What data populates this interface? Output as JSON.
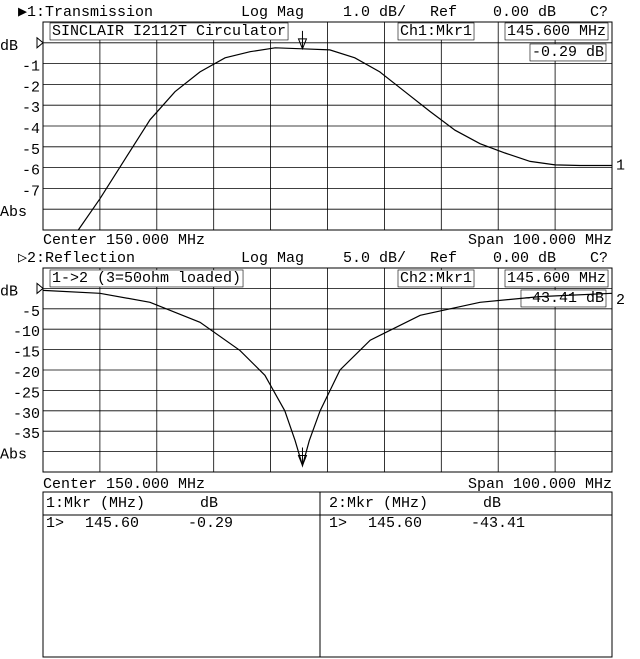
{
  "chart_data": [
    {
      "type": "line",
      "header": {
        "trace": "▶1:Transmission",
        "format": "Log Mag",
        "scale": "1.0 dB/",
        "ref_label": "Ref",
        "ref": "0.00 dB",
        "cal": "C?"
      },
      "annotation": "SINCLAIR I2112T Circulator",
      "marker_readout": {
        "channel": "Ch1:Mkr1",
        "frequency": "145.600 MHz",
        "value": "-0.29 dB"
      },
      "center": "Center 150.000 MHz",
      "span": "Span 100.000 MHz",
      "trace_label": "1",
      "color": "#000000",
      "x": [
        106.2,
        110,
        114.4,
        118.8,
        123.2,
        127.6,
        132,
        136.4,
        140.8,
        145.6,
        150.4,
        154.8,
        159.2,
        163.6,
        168,
        172.4,
        176.8,
        181.2,
        185.6,
        190,
        194.4,
        200
      ],
      "values": [
        -9,
        -7.5,
        -5.6,
        -3.7,
        -2.35,
        -1.4,
        -0.72,
        -0.43,
        -0.24,
        -0.29,
        -0.34,
        -0.72,
        -1.4,
        -2.35,
        -3.3,
        -4.2,
        -4.85,
        -5.3,
        -5.7,
        -5.87,
        -5.9,
        -5.9
      ],
      "marker": {
        "x": 145.6,
        "value": -0.29
      },
      "xlim": [
        100,
        200
      ],
      "ylim": [
        -9,
        1
      ],
      "xticks": [
        110,
        120,
        130,
        140,
        150,
        160,
        170,
        180,
        190
      ],
      "yticks": [
        {
          "value": 0,
          "label": "dB"
        },
        -1,
        -2,
        -3,
        -4,
        -5,
        -6,
        -7,
        {
          "value": -8,
          "label": "Abs"
        }
      ],
      "grid": true
    },
    {
      "type": "line",
      "header": {
        "trace": "▷2:Reflection",
        "format": "Log Mag",
        "scale": "5.0 dB/",
        "ref_label": "Ref",
        "ref": "0.00 dB",
        "cal": "C?"
      },
      "annotation": "1->2 (3=50ohm loaded)",
      "marker_readout": {
        "channel": "Ch2:Mkr1",
        "frequency": "145.600 MHz",
        "value": "-43.41 dB"
      },
      "center": "Center 150.000 MHz",
      "span": "Span 100.000 MHz",
      "trace_label": "2",
      "color": "#000000",
      "x": [
        100,
        110,
        118.8,
        127.6,
        134.6,
        139,
        142.5,
        144.3,
        145.6,
        146.8,
        148.7,
        152.2,
        157.5,
        166.3,
        176.8,
        187.3,
        200
      ],
      "values": [
        -0.5,
        -1.2,
        -3.4,
        -8.3,
        -15.2,
        -21.3,
        -30,
        -37.3,
        -43.41,
        -37.3,
        -30,
        -20,
        -12.7,
        -6.6,
        -3.4,
        -2,
        -1.2
      ],
      "marker": {
        "x": 145.6,
        "value": -43.41
      },
      "xlim": [
        100,
        200
      ],
      "ylim": [
        -45,
        5
      ],
      "xticks": [
        110,
        120,
        130,
        140,
        150,
        160,
        170,
        180,
        190
      ],
      "yticks": [
        {
          "value": 0,
          "label": "dB"
        },
        -5,
        -10,
        -15,
        -20,
        -25,
        -30,
        -35,
        {
          "value": -40,
          "label": "Abs"
        }
      ],
      "grid": true
    }
  ],
  "marker_table": [
    {
      "header": "1:Mkr (MHz)",
      "unit": "dB",
      "rows": [
        [
          "1>",
          "145.60",
          "-0.29"
        ]
      ]
    },
    {
      "header": "2:Mkr (MHz)",
      "unit": "dB",
      "rows": [
        [
          "1>",
          "145.60",
          "-43.41"
        ]
      ]
    }
  ]
}
